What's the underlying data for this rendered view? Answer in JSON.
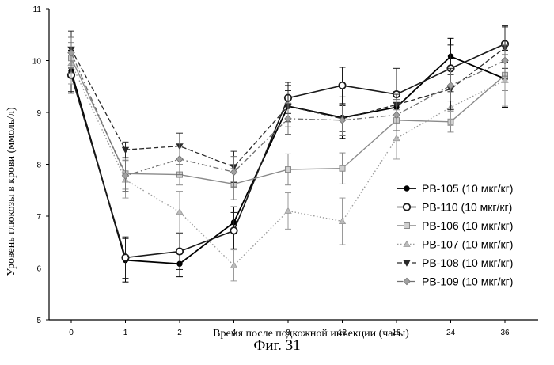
{
  "caption": "Фиг. 31",
  "chart_data": {
    "type": "line",
    "title": "",
    "xlabel": "Время после подкожной инъекции (часы)",
    "ylabel": "Уровень глюкозы в крови (ммоль/л)",
    "categories": [
      "0",
      "1",
      "2",
      "4",
      "8",
      "12",
      "18",
      "24",
      "36"
    ],
    "ylim": [
      5,
      11
    ],
    "yticks": [
      5,
      6,
      7,
      8,
      9,
      10,
      11
    ],
    "grid": false,
    "legend_position": "right",
    "series": [
      {
        "name": "PB-105 (10 мкг/кг)",
        "values": [
          9.8,
          6.15,
          6.08,
          6.88,
          9.12,
          8.9,
          9.1,
          10.08,
          9.65
        ],
        "errors": [
          0.4,
          0.42,
          0.25,
          0.3,
          0.4,
          0.4,
          0.3,
          0.35,
          0.55
        ],
        "style": "solid",
        "marker": "filled-circle",
        "color": "#000000",
        "width": 1.8
      },
      {
        "name": "PB-110 (10 мкг/кг)",
        "values": [
          9.72,
          6.2,
          6.32,
          6.72,
          9.28,
          9.52,
          9.35,
          9.85,
          10.32
        ],
        "errors": [
          0.35,
          0.4,
          0.35,
          0.35,
          0.3,
          0.35,
          0.5,
          0.45,
          0.35
        ],
        "style": "solid",
        "marker": "open-circle",
        "color": "#1a1a1a",
        "width": 1.6
      },
      {
        "name": "PB-106 (10 мкг/кг)",
        "values": [
          10.05,
          7.82,
          7.8,
          7.62,
          7.9,
          7.92,
          8.85,
          8.82,
          9.72
        ],
        "errors": [
          0.3,
          0.3,
          0.2,
          0.3,
          0.3,
          0.3,
          0.2,
          0.2,
          0.3
        ],
        "style": "solid",
        "marker": "hatched-square",
        "color": "#8a8a8a",
        "width": 1.4
      },
      {
        "name": "PB-107 (10 мкг/кг)",
        "values": [
          9.95,
          7.7,
          7.08,
          6.05,
          7.1,
          6.9,
          8.5,
          9.1,
          9.62
        ],
        "errors": [
          0.4,
          0.35,
          0.4,
          0.3,
          0.35,
          0.45,
          0.4,
          0.35,
          0.5
        ],
        "style": "dotted",
        "marker": "triangle",
        "color": "#9a9a9a",
        "width": 1.4
      },
      {
        "name": "PB-108 (10 мкг/кг)",
        "values": [
          10.22,
          8.28,
          8.35,
          7.95,
          9.12,
          8.88,
          9.15,
          9.45,
          10.25
        ],
        "errors": [
          0.35,
          0.15,
          0.25,
          0.3,
          0.3,
          0.25,
          0.2,
          0.4,
          0.4
        ],
        "style": "dashed",
        "marker": "triangle-down",
        "color": "#2a2a2a",
        "width": 1.3
      },
      {
        "name": "PB-109 (10 мкг/кг)",
        "values": [
          10.15,
          7.78,
          8.1,
          7.85,
          8.88,
          8.85,
          8.95,
          9.52,
          10.0
        ],
        "errors": [
          0.3,
          0.3,
          0.3,
          0.3,
          0.3,
          0.3,
          0.3,
          0.3,
          0.3
        ],
        "style": "dashdot",
        "marker": "diamond",
        "color": "#707070",
        "width": 1.3
      }
    ]
  }
}
